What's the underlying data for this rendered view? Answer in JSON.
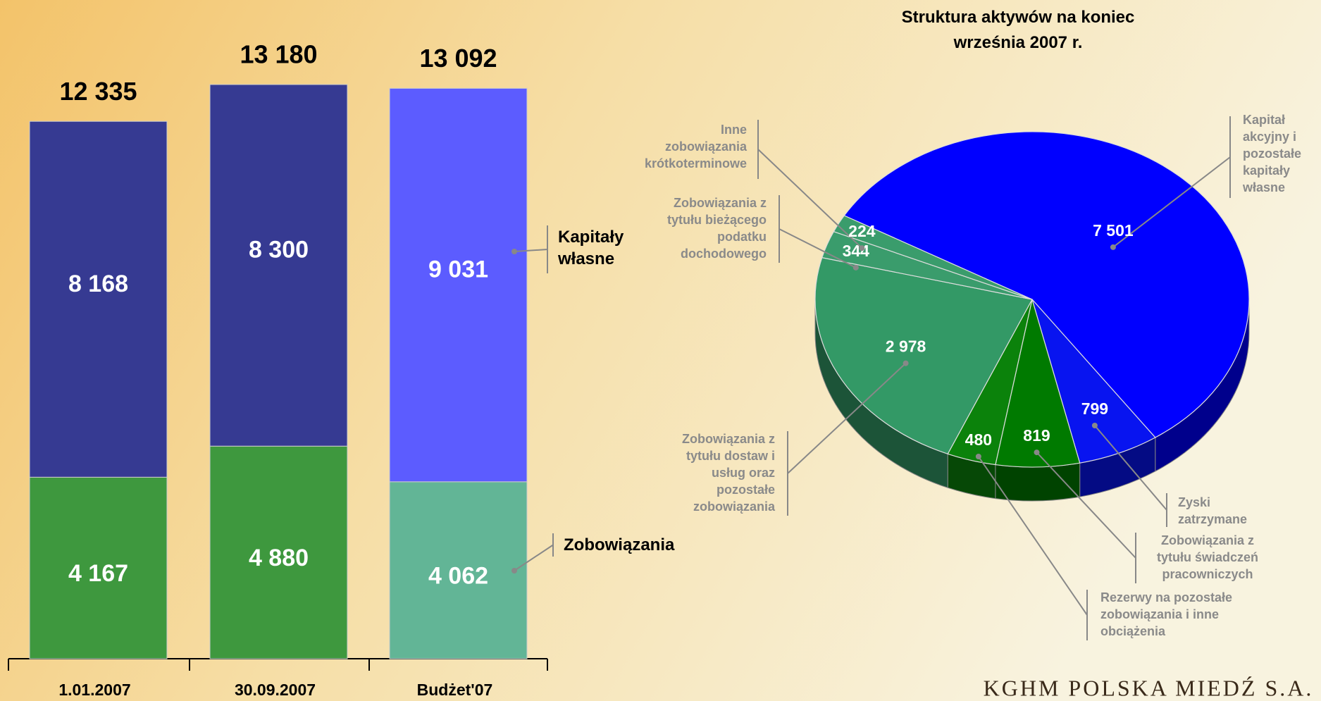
{
  "chart_data": [
    {
      "type": "bar",
      "stacked": true,
      "categories": [
        "1.01.2007",
        "30.09.2007",
        "Budżet'07"
      ],
      "series": [
        {
          "name": "Zobowiązania",
          "colors": [
            "#3e983e",
            "#3e983e",
            "#62b596"
          ],
          "values": [
            4167,
            4880,
            4062
          ],
          "value_labels": [
            "4 167",
            "4 880",
            "4 062"
          ]
        },
        {
          "name": "Kapitały własne",
          "colors": [
            "#363a92",
            "#363a92",
            "#5c5cff"
          ],
          "values": [
            8168,
            8300,
            9031
          ],
          "value_labels": [
            "8 168",
            "8 300",
            "9 031"
          ]
        }
      ],
      "totals": [
        12335,
        13180,
        13092
      ],
      "total_labels": [
        "12 335",
        "13 180",
        "13 092"
      ]
    },
    {
      "type": "pie",
      "title": "Struktura aktywów na koniec września 2007 r.",
      "categories": [
        "Kapitał akcyjny i pozostałe kapitały własne",
        "Zyski zatrzymane",
        "Zobowiązania z tytułu świadczeń pracowniczych",
        "Rezerwy na pozostałe zobowiązania i inne obciążenia",
        "Zobowiązania z tytułu dostaw i usług oraz pozostałe zobowiązania",
        "Zobowiązania z tytułu bieżącego podatku dochodowego",
        "Inne zobowiązania krótkoterminowe"
      ],
      "values": [
        7501,
        799,
        819,
        480,
        2978,
        344,
        224
      ],
      "value_labels": [
        "7 501",
        "799",
        "819",
        "480",
        "2 978",
        "344",
        "224"
      ],
      "colors": [
        "#0000ff",
        "#0814f0",
        "#007a00",
        "#0b820b",
        "#339966",
        "#3a9c6c",
        "#3a9c6c"
      ]
    }
  ],
  "footer": "KGHM POLSKA MIEDŹ S.A."
}
